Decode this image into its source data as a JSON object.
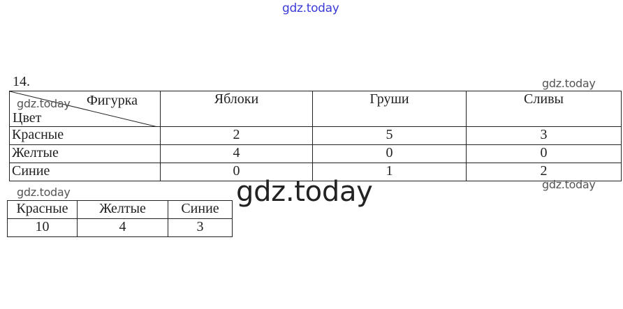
{
  "watermarks": {
    "top": "gdz.today",
    "big": "gdz.today",
    "small": "gdz.today"
  },
  "exercise_number": "14.",
  "main_table": {
    "corner": {
      "top_right": "Фигурка",
      "bottom_left": "Цвет"
    },
    "columns": [
      "Яблоки",
      "Груши",
      "Сливы"
    ],
    "rows": [
      {
        "label": "Красные",
        "values": [
          "2",
          "5",
          "3"
        ]
      },
      {
        "label": "Желтые",
        "values": [
          "4",
          "0",
          "0"
        ]
      },
      {
        "label": "Синие",
        "values": [
          "0",
          "1",
          "2"
        ]
      }
    ]
  },
  "totals_table": {
    "headers": [
      "Красные",
      "Желтые",
      "Синие"
    ],
    "values": [
      "10",
      "4",
      "3"
    ]
  }
}
